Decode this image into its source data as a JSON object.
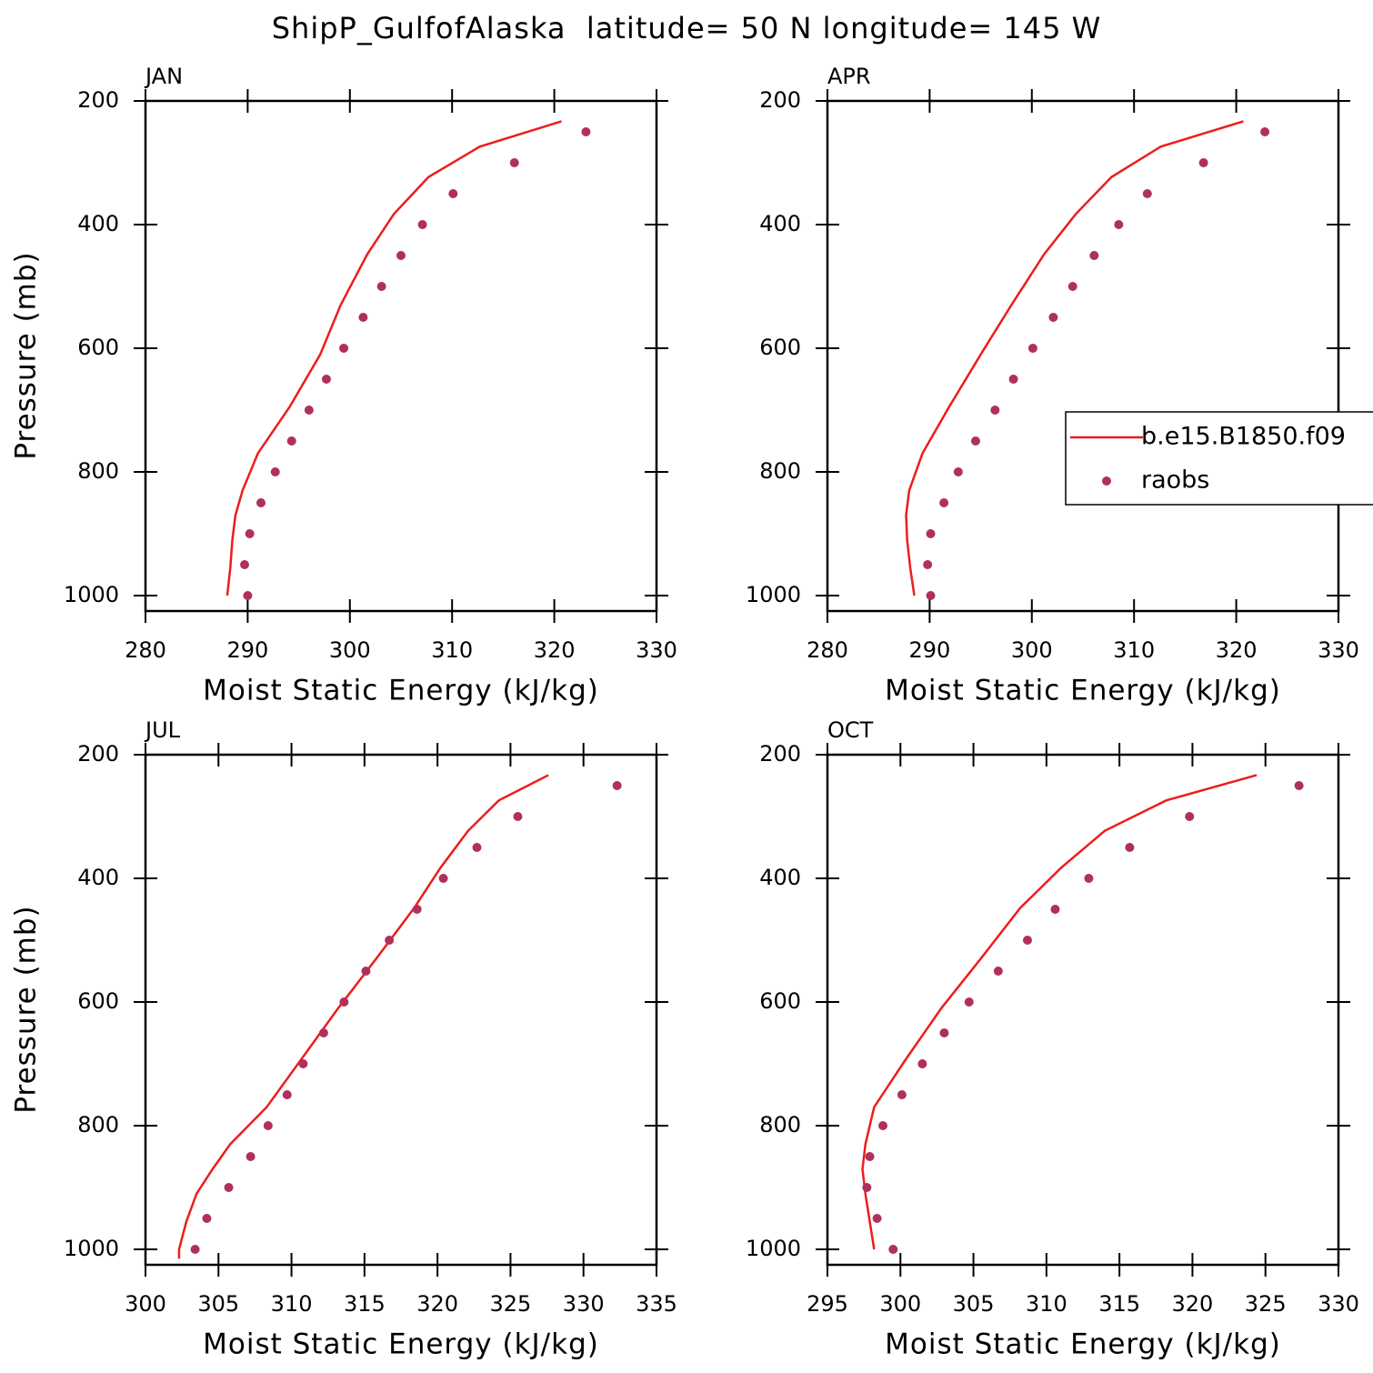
{
  "title": "ShipP_GulfofAlaska  latitude= 50 N longitude= 145 W",
  "chart_data": [
    {
      "type": "line",
      "panel_label": "JAN",
      "xlabel": "Moist Static Energy (kJ/kg)",
      "ylabel": "Pressure (mb)",
      "xlim": [
        280,
        330
      ],
      "xticks": [
        280,
        290,
        300,
        310,
        320,
        330
      ],
      "ylim": [
        1025,
        200
      ],
      "yticks": [
        200,
        400,
        600,
        800,
        1000
      ],
      "series": [
        {
          "name": "b.e15.B1850.f09",
          "type": "line",
          "color": "#ee1c1c",
          "x": [
            320.7,
            312.7,
            307.7,
            304.3,
            301.7,
            299.1,
            297.1,
            294.1,
            291.0,
            289.5,
            288.8,
            288.5,
            288.3,
            288.0
          ],
          "y": [
            233,
            274,
            323,
            383,
            448,
            530,
            610,
            695,
            770,
            830,
            870,
            910,
            955,
            1000
          ]
        },
        {
          "name": "raobs",
          "type": "scatter",
          "color": "#b0305c",
          "x": [
            323.1,
            316.1,
            310.1,
            307.1,
            305.0,
            303.1,
            301.3,
            299.4,
            297.7,
            296.0,
            294.3,
            292.7,
            291.3,
            290.2,
            289.7,
            290.0
          ],
          "y": [
            250,
            300,
            350,
            400,
            450,
            500,
            550,
            600,
            650,
            700,
            750,
            800,
            850,
            900,
            950,
            1000
          ]
        }
      ]
    },
    {
      "type": "line",
      "panel_label": "APR",
      "xlabel": "Moist Static Energy (kJ/kg)",
      "legend": "right",
      "xlim": [
        280,
        330
      ],
      "xticks": [
        280,
        290,
        300,
        310,
        320,
        330
      ],
      "ylim": [
        1025,
        200
      ],
      "yticks": [
        200,
        400,
        600,
        800,
        1000
      ],
      "series": [
        {
          "name": "b.e15.B1850.f09",
          "type": "line",
          "color": "#ee1c1c",
          "x": [
            320.7,
            312.6,
            307.8,
            304.3,
            301.2,
            298.0,
            295.0,
            291.9,
            289.3,
            288.0,
            287.7,
            287.8,
            288.1,
            288.5
          ],
          "y": [
            233,
            274,
            323,
            383,
            448,
            530,
            610,
            695,
            770,
            830,
            870,
            910,
            955,
            1000
          ]
        },
        {
          "name": "raobs",
          "type": "scatter",
          "color": "#b0305c",
          "x": [
            322.8,
            316.8,
            311.3,
            308.5,
            306.1,
            304.0,
            302.1,
            300.1,
            298.2,
            296.4,
            294.5,
            292.8,
            291.4,
            290.1,
            289.8,
            290.1
          ],
          "y": [
            250,
            300,
            350,
            400,
            450,
            500,
            550,
            600,
            650,
            700,
            750,
            800,
            850,
            900,
            950,
            1000
          ]
        }
      ]
    },
    {
      "type": "line",
      "panel_label": "JUL",
      "xlabel": "Moist Static Energy (kJ/kg)",
      "ylabel": "Pressure (mb)",
      "xlim": [
        300,
        335
      ],
      "xticks": [
        300,
        305,
        310,
        315,
        320,
        325,
        330,
        335
      ],
      "ylim": [
        1025,
        200
      ],
      "yticks": [
        200,
        400,
        600,
        800,
        1000
      ],
      "series": [
        {
          "name": "b.e15.B1850.f09",
          "type": "line",
          "color": "#ee1c1c",
          "x": [
            327.6,
            324.2,
            322.1,
            320.2,
            318.4,
            315.8,
            313.2,
            310.6,
            308.3,
            305.8,
            304.6,
            303.5,
            302.8,
            302.3,
            302.3
          ],
          "y": [
            233,
            274,
            323,
            383,
            448,
            530,
            610,
            695,
            770,
            830,
            870,
            910,
            955,
            1000,
            1015
          ]
        },
        {
          "name": "raobs",
          "type": "scatter",
          "color": "#b0305c",
          "x": [
            332.3,
            325.5,
            322.7,
            320.4,
            318.6,
            316.7,
            315.1,
            313.6,
            312.2,
            310.8,
            309.7,
            308.4,
            307.2,
            305.7,
            304.2,
            303.4
          ],
          "y": [
            250,
            300,
            350,
            400,
            450,
            500,
            550,
            600,
            650,
            700,
            750,
            800,
            850,
            900,
            950,
            1000
          ]
        }
      ]
    },
    {
      "type": "line",
      "panel_label": "OCT",
      "xlabel": "Moist Static Energy (kJ/kg)",
      "xlim": [
        295,
        330
      ],
      "xticks": [
        295,
        300,
        305,
        310,
        315,
        320,
        325,
        330
      ],
      "ylim": [
        1025,
        200
      ],
      "yticks": [
        200,
        400,
        600,
        800,
        1000
      ],
      "series": [
        {
          "name": "b.e15.B1850.f09",
          "type": "line",
          "color": "#ee1c1c",
          "x": [
            324.4,
            318.2,
            314.0,
            311.0,
            308.2,
            305.5,
            302.8,
            300.3,
            298.2,
            297.6,
            297.4,
            297.6,
            297.9,
            298.2
          ],
          "y": [
            233,
            274,
            323,
            383,
            448,
            530,
            610,
            695,
            770,
            830,
            870,
            910,
            955,
            1000
          ]
        },
        {
          "name": "raobs",
          "type": "scatter",
          "color": "#b0305c",
          "x": [
            327.3,
            319.8,
            315.7,
            312.9,
            310.6,
            308.7,
            306.7,
            304.7,
            303.0,
            301.5,
            300.1,
            298.8,
            297.9,
            297.7,
            298.4,
            299.5
          ],
          "y": [
            250,
            300,
            350,
            400,
            450,
            500,
            550,
            600,
            650,
            700,
            750,
            800,
            850,
            900,
            950,
            1000
          ]
        }
      ]
    }
  ]
}
